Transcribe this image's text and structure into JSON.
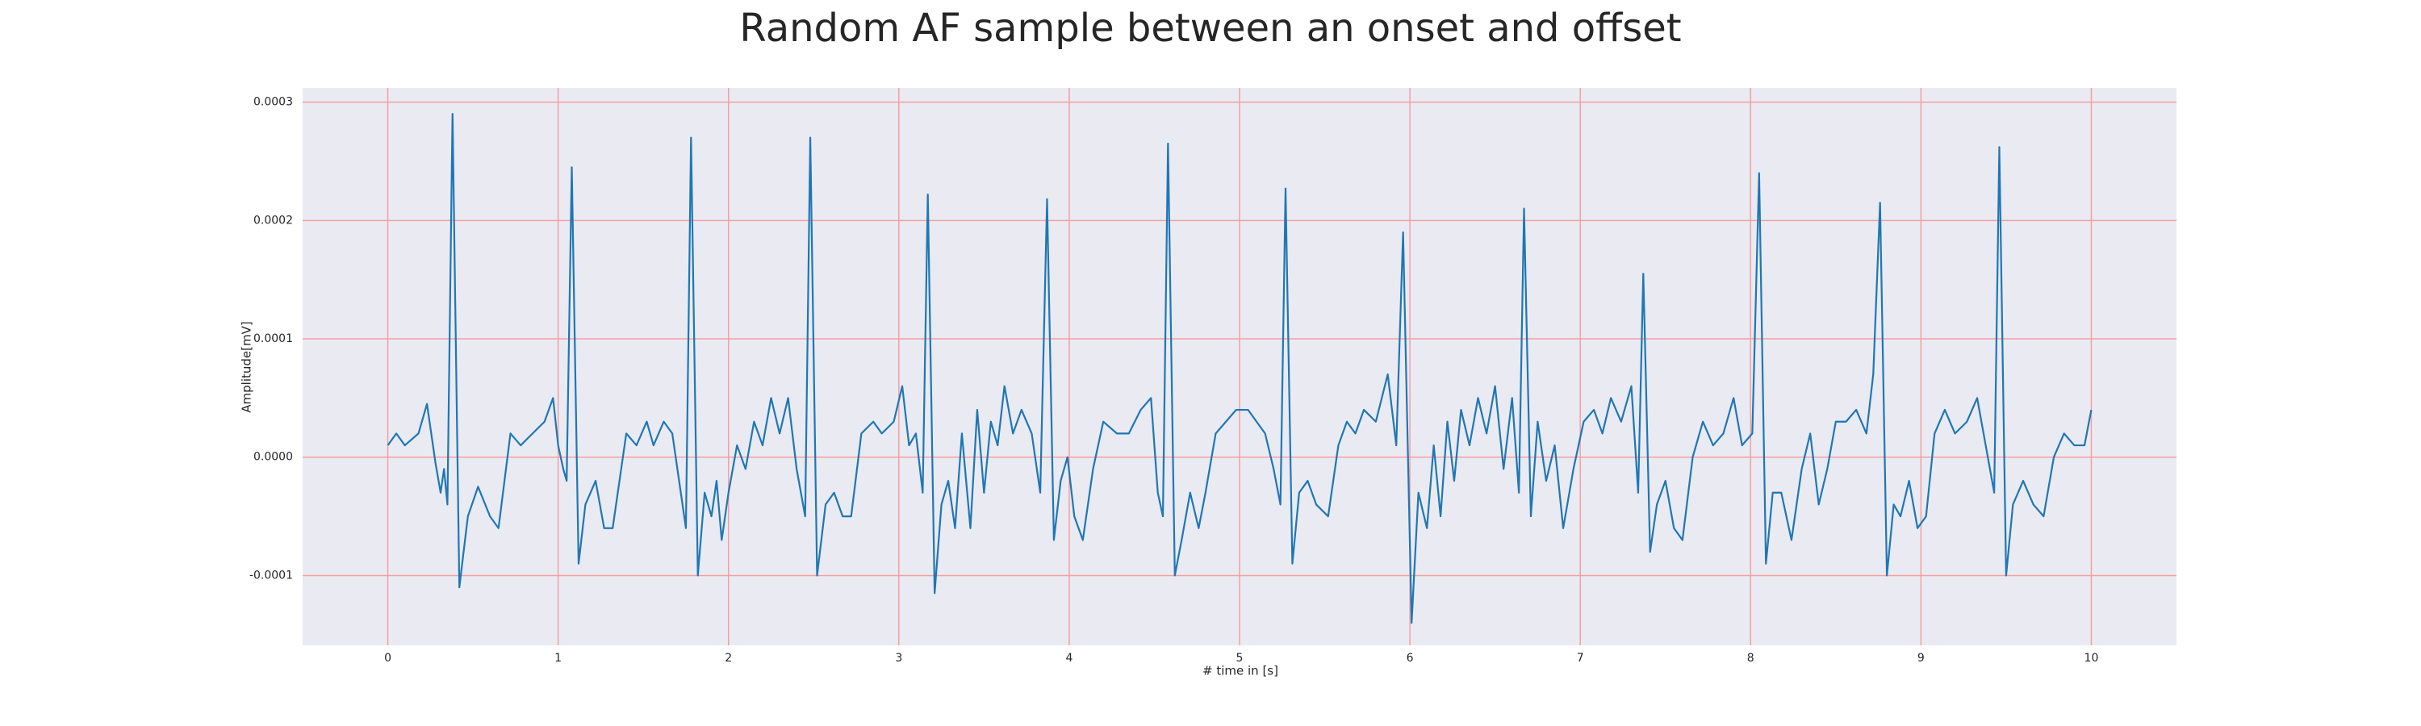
{
  "chart_data": {
    "type": "line",
    "title": "Random AF sample between an onset and offset",
    "xlabel": "# time in [s]",
    "ylabel": "Amplitude[mV]",
    "color": "#1f77b4",
    "grid": true,
    "grid_color": "#f4a0a0",
    "xlim": [
      -0.5,
      10.5
    ],
    "ylim": [
      -0.000159,
      0.000312
    ],
    "xticks": [
      0,
      1,
      2,
      3,
      4,
      5,
      6,
      7,
      8,
      9,
      10
    ],
    "yticks": [
      -0.0001,
      {
        "value": 0,
        "label": "0.0000"
      },
      0.0001,
      0.0002,
      0.0003
    ],
    "x": [
      0.0,
      0.05,
      0.1,
      0.18,
      0.23,
      0.28,
      0.31,
      0.33,
      0.35,
      0.38,
      0.42,
      0.47,
      0.53,
      0.6,
      0.65,
      0.72,
      0.78,
      0.85,
      0.92,
      0.97,
      1.0,
      1.03,
      1.05,
      1.08,
      1.12,
      1.16,
      1.22,
      1.27,
      1.32,
      1.4,
      1.46,
      1.52,
      1.56,
      1.62,
      1.67,
      1.71,
      1.75,
      1.78,
      1.82,
      1.86,
      1.9,
      1.93,
      1.96,
      2.0,
      2.05,
      2.1,
      2.15,
      2.2,
      2.25,
      2.3,
      2.35,
      2.4,
      2.45,
      2.48,
      2.52,
      2.57,
      2.62,
      2.67,
      2.72,
      2.78,
      2.85,
      2.9,
      2.97,
      3.02,
      3.06,
      3.1,
      3.14,
      3.17,
      3.21,
      3.25,
      3.29,
      3.33,
      3.37,
      3.42,
      3.46,
      3.5,
      3.54,
      3.58,
      3.62,
      3.67,
      3.72,
      3.78,
      3.83,
      3.87,
      3.91,
      3.95,
      3.99,
      4.03,
      4.08,
      4.14,
      4.2,
      4.28,
      4.35,
      4.42,
      4.48,
      4.52,
      4.55,
      4.58,
      4.62,
      4.66,
      4.71,
      4.76,
      4.8,
      4.86,
      4.92,
      4.98,
      5.05,
      5.1,
      5.15,
      5.2,
      5.24,
      5.27,
      5.31,
      5.35,
      5.4,
      5.45,
      5.52,
      5.58,
      5.63,
      5.68,
      5.73,
      5.8,
      5.87,
      5.92,
      5.96,
      6.01,
      6.05,
      6.1,
      6.14,
      6.18,
      6.22,
      6.26,
      6.3,
      6.35,
      6.4,
      6.45,
      6.5,
      6.55,
      6.6,
      6.64,
      6.67,
      6.71,
      6.75,
      6.8,
      6.85,
      6.9,
      6.96,
      7.02,
      7.08,
      7.13,
      7.18,
      7.24,
      7.3,
      7.34,
      7.37,
      7.41,
      7.45,
      7.5,
      7.55,
      7.6,
      7.66,
      7.72,
      7.78,
      7.84,
      7.9,
      7.95,
      8.01,
      8.05,
      8.09,
      8.13,
      8.18,
      8.24,
      8.3,
      8.35,
      8.4,
      8.45,
      8.5,
      8.56,
      8.62,
      8.68,
      8.72,
      8.76,
      8.8,
      8.84,
      8.88,
      8.93,
      8.98,
      9.03,
      9.08,
      9.14,
      9.2,
      9.27,
      9.33,
      9.38,
      9.43,
      9.46,
      9.5,
      9.54,
      9.6,
      9.66,
      9.72,
      9.78,
      9.84,
      9.9,
      9.96,
      10.0
    ],
    "values": [
      1e-05,
      2e-05,
      1e-05,
      2e-05,
      4.5e-05,
      -5e-06,
      -3e-05,
      -1e-05,
      -4e-05,
      0.00029,
      -0.00011,
      -5e-05,
      -2.5e-05,
      -5e-05,
      -6e-05,
      2e-05,
      1e-05,
      2e-05,
      3e-05,
      5e-05,
      1e-05,
      -1e-05,
      -2e-05,
      0.000245,
      -9e-05,
      -4e-05,
      -2e-05,
      -6e-05,
      -6e-05,
      2e-05,
      1e-05,
      3e-05,
      1e-05,
      3e-05,
      2e-05,
      -2e-05,
      -6e-05,
      0.00027,
      -0.0001,
      -3e-05,
      -5e-05,
      -2e-05,
      -7e-05,
      -3e-05,
      1e-05,
      -1e-05,
      3e-05,
      1e-05,
      5e-05,
      2e-05,
      5e-05,
      -1e-05,
      -5e-05,
      0.00027,
      -0.0001,
      -4e-05,
      -3e-05,
      -5e-05,
      -5e-05,
      2e-05,
      3e-05,
      2e-05,
      3e-05,
      6e-05,
      1e-05,
      2e-05,
      -3e-05,
      0.000222,
      -0.000115,
      -4e-05,
      -2e-05,
      -6e-05,
      2e-05,
      -6e-05,
      4e-05,
      -3e-05,
      3e-05,
      1e-05,
      6e-05,
      2e-05,
      4e-05,
      2e-05,
      -3e-05,
      0.000218,
      -7e-05,
      -2e-05,
      0,
      -5e-05,
      -7e-05,
      -1e-05,
      3e-05,
      2e-05,
      2e-05,
      4e-05,
      5e-05,
      -3e-05,
      -5e-05,
      0.000265,
      -0.0001,
      -7e-05,
      -3e-05,
      -6e-05,
      -3e-05,
      2e-05,
      3e-05,
      4e-05,
      4e-05,
      3e-05,
      2e-05,
      -1e-05,
      -4e-05,
      0.000227,
      -9e-05,
      -3e-05,
      -2e-05,
      -4e-05,
      -5e-05,
      1e-05,
      3e-05,
      2e-05,
      4e-05,
      3e-05,
      7e-05,
      1e-05,
      0.00019,
      -0.00014,
      -3e-05,
      -6e-05,
      1e-05,
      -5e-05,
      3e-05,
      -2e-05,
      4e-05,
      1e-05,
      5e-05,
      2e-05,
      6e-05,
      -1e-05,
      5e-05,
      -3e-05,
      0.00021,
      -5e-05,
      3e-05,
      -2e-05,
      1e-05,
      -6e-05,
      -1e-05,
      3e-05,
      4e-05,
      2e-05,
      5e-05,
      3e-05,
      6e-05,
      -3e-05,
      0.000155,
      -8e-05,
      -4e-05,
      -2e-05,
      -6e-05,
      -7e-05,
      0,
      3e-05,
      1e-05,
      2e-05,
      5e-05,
      1e-05,
      2e-05,
      0.00024,
      -9e-05,
      -3e-05,
      -3e-05,
      -7e-05,
      -1e-05,
      2e-05,
      -4e-05,
      -1e-05,
      3e-05,
      3e-05,
      4e-05,
      2e-05,
      7e-05,
      0.000215,
      -0.0001,
      -4e-05,
      -5e-05,
      -2e-05,
      -6e-05,
      -5e-05,
      2e-05,
      4e-05,
      2e-05,
      3e-05,
      5e-05,
      1e-05,
      -3e-05,
      0.000262,
      -0.0001,
      -4e-05,
      -2e-05,
      -4e-05,
      -5e-05,
      0,
      2e-05,
      1e-05,
      1e-05,
      4e-05
    ]
  }
}
